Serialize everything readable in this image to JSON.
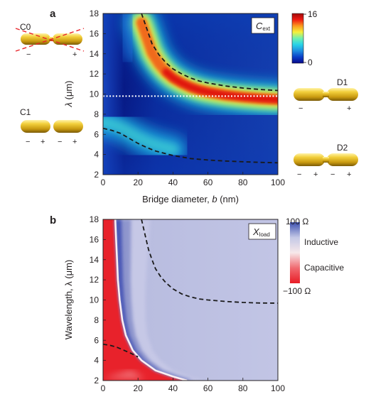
{
  "figure": {
    "panel_a_label": "a",
    "panel_b_label": "b"
  },
  "legend_a": {
    "max_label": "16",
    "min_label": "0",
    "colors": [
      "#08088a",
      "#0a3fc8",
      "#1f8fe0",
      "#28d3e8",
      "#6ef0b0",
      "#f5f03a",
      "#fb9a1e",
      "#f01a12",
      "#a00a0a"
    ]
  },
  "legend_b": {
    "top_label": "100 Ω",
    "bottom_label": "−100 Ω",
    "upper_name": "Inductive",
    "lower_name": "Capacitive",
    "colors": [
      "#3b4fb0",
      "#c4c8e6",
      "#f7e8ea",
      "#f06a70",
      "#e81c26"
    ]
  },
  "rod_diagrams": {
    "C0": {
      "label": "C0",
      "signs": [
        "−",
        "+"
      ]
    },
    "C1": {
      "label": "C1",
      "signs": [
        "−",
        "+",
        "−",
        "+"
      ]
    },
    "D1": {
      "label": "D1",
      "signs": [
        "−",
        "+"
      ]
    },
    "D2": {
      "label": "D2",
      "signs": [
        "−",
        "+",
        "−",
        "+"
      ]
    }
  },
  "chart_data": [
    {
      "type": "heatmap",
      "panel": "a",
      "title_main": "C",
      "title_sub": "ext",
      "xlabel_main": "Bridge diameter, ",
      "xlabel_var": "b",
      "xlabel_unit": " (nm)",
      "ylabel_var": "λ",
      "ylabel_unit": " (μm)",
      "xlim": [
        0,
        100
      ],
      "ylim": [
        2,
        18
      ],
      "xticks": [
        "0",
        "20",
        "40",
        "60",
        "80",
        "100"
      ],
      "yticks": [
        "2",
        "4",
        "6",
        "8",
        "10",
        "12",
        "14",
        "16",
        "18"
      ],
      "colorbar_range": [
        0,
        16
      ],
      "reference_line": {
        "y": 9.8,
        "style": "dotted",
        "color": "#ffffff"
      },
      "series": [
        {
          "x": [
            22,
            25,
            28,
            32,
            36,
            40,
            45,
            50,
            55,
            60,
            70,
            80,
            90,
            100
          ],
          "y": [
            18,
            16.5,
            15,
            13.9,
            13.1,
            12.5,
            12.0,
            11.6,
            11.3,
            11.1,
            10.8,
            10.6,
            10.45,
            10.35
          ]
        },
        {
          "x": [
            0,
            5,
            10,
            15,
            20,
            25,
            30,
            40,
            50,
            60,
            70,
            80,
            90,
            100
          ],
          "y": [
            6.6,
            6.4,
            6.1,
            5.6,
            5.1,
            4.7,
            4.35,
            3.9,
            3.6,
            3.45,
            3.35,
            3.28,
            3.22,
            3.18
          ]
        }
      ]
    },
    {
      "type": "heatmap",
      "panel": "b",
      "title_main": "X",
      "title_sub": "load",
      "xlabel": "",
      "ylabel": "Wavelength, λ (μm)",
      "xlim": [
        0,
        100
      ],
      "ylim": [
        2,
        18
      ],
      "xticks": [
        "0",
        "20",
        "40",
        "60",
        "80",
        "100"
      ],
      "yticks": [
        "2",
        "4",
        "6",
        "8",
        "10",
        "12",
        "14",
        "16",
        "18"
      ],
      "colorbar_range": [
        -100,
        100
      ],
      "boundary": {
        "x": [
          7,
          7.5,
          8,
          8.5,
          9.5,
          11,
          13,
          17,
          22,
          30,
          40,
          48
        ],
        "y": [
          18,
          16,
          14,
          12,
          10,
          8,
          6.5,
          5,
          4,
          3,
          2.4,
          2
        ]
      },
      "series": [
        {
          "x": [
            22,
            24,
            26,
            28,
            30,
            33,
            36,
            40,
            45,
            50,
            55,
            60,
            70,
            80,
            90,
            100
          ],
          "y": [
            18,
            16.5,
            15,
            14,
            13.1,
            12.3,
            11.7,
            11.1,
            10.6,
            10.3,
            10.1,
            10.0,
            9.85,
            9.75,
            9.7,
            9.68
          ]
        },
        {
          "x": [
            0,
            4,
            8,
            12,
            16,
            20
          ],
          "y": [
            5.6,
            5.5,
            5.3,
            5.0,
            4.7,
            4.35
          ]
        }
      ]
    }
  ]
}
